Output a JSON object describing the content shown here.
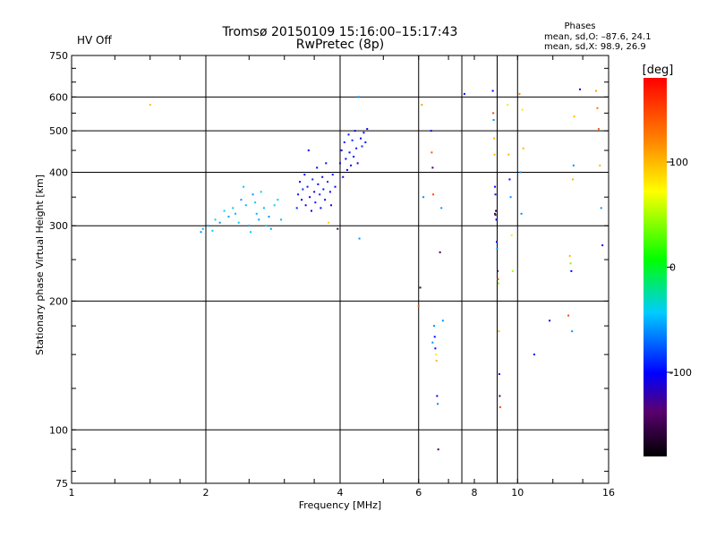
{
  "status": {
    "label": "HV Off",
    "color": "#cc0000"
  },
  "header": {
    "title_line1": "Tromsø 20150109 15:16:00–15:17:43",
    "title_line2": "RwPretec (8p)"
  },
  "phases_box": {
    "heading": "Phases",
    "line_o": "mean, sd,O: –87.6, 24.1",
    "line_x": "mean, sd,X:  98.9, 26.9"
  },
  "chart_data": {
    "type": "scatter",
    "title": "Tromsø 20150109 15:16:00–15:17:43",
    "subtitle": "RwPretec (8p)",
    "xlabel": "Frequency [MHz]",
    "ylabel": "Stationary phase Virtual Height [km]",
    "xscale": "log",
    "yscale": "log",
    "xlim": [
      1,
      16
    ],
    "ylim": [
      75,
      750
    ],
    "xticks": [
      {
        "value": 1,
        "label": "1"
      },
      {
        "value": 2,
        "label": "2"
      },
      {
        "value": 4,
        "label": "4"
      },
      {
        "value": 6,
        "label": "6"
      },
      {
        "value": 8,
        "label": "8"
      },
      {
        "value": 10,
        "label": "10"
      },
      {
        "value": 16,
        "label": "16"
      }
    ],
    "yticks": [
      {
        "value": 75,
        "label": "75"
      },
      {
        "value": 100,
        "label": "100"
      },
      {
        "value": 200,
        "label": "200"
      },
      {
        "value": 300,
        "label": "300"
      },
      {
        "value": 400,
        "label": "400"
      },
      {
        "value": 500,
        "label": "500"
      },
      {
        "value": 600,
        "label": "600"
      },
      {
        "value": 750,
        "label": "750"
      }
    ],
    "grid_x": [
      2,
      4,
      6,
      7.5,
      9,
      10
    ],
    "grid_y": [
      100,
      200,
      300,
      400,
      500,
      600
    ],
    "colorbar": {
      "label": "[deg]",
      "range": [
        -180,
        180
      ],
      "ticks": [
        {
          "value": 100,
          "label": "100"
        },
        {
          "value": 0,
          "label": "0"
        },
        {
          "value": -100,
          "label": "-100"
        }
      ]
    },
    "points": [
      {
        "x": 1.5,
        "y": 575,
        "deg": 100
      },
      {
        "x": 1.95,
        "y": 290,
        "deg": -60
      },
      {
        "x": 1.97,
        "y": 295,
        "deg": -50
      },
      {
        "x": 2.02,
        "y": 300,
        "deg": -55
      },
      {
        "x": 2.07,
        "y": 292,
        "deg": -45
      },
      {
        "x": 2.1,
        "y": 310,
        "deg": -40
      },
      {
        "x": 2.15,
        "y": 305,
        "deg": -60
      },
      {
        "x": 2.2,
        "y": 325,
        "deg": -40
      },
      {
        "x": 2.25,
        "y": 315,
        "deg": -55
      },
      {
        "x": 2.3,
        "y": 330,
        "deg": -45
      },
      {
        "x": 2.33,
        "y": 320,
        "deg": -50
      },
      {
        "x": 2.37,
        "y": 305,
        "deg": -40
      },
      {
        "x": 2.4,
        "y": 345,
        "deg": -60
      },
      {
        "x": 2.43,
        "y": 370,
        "deg": -45
      },
      {
        "x": 2.46,
        "y": 335,
        "deg": -50
      },
      {
        "x": 2.5,
        "y": 300,
        "deg": -55
      },
      {
        "x": 2.52,
        "y": 290,
        "deg": -40
      },
      {
        "x": 2.55,
        "y": 355,
        "deg": -60
      },
      {
        "x": 2.58,
        "y": 340,
        "deg": -45
      },
      {
        "x": 2.6,
        "y": 320,
        "deg": -50
      },
      {
        "x": 2.63,
        "y": 310,
        "deg": -55
      },
      {
        "x": 2.66,
        "y": 360,
        "deg": -40
      },
      {
        "x": 2.7,
        "y": 330,
        "deg": -50
      },
      {
        "x": 2.73,
        "y": 300,
        "deg": -45
      },
      {
        "x": 2.77,
        "y": 315,
        "deg": -60
      },
      {
        "x": 2.8,
        "y": 295,
        "deg": -55
      },
      {
        "x": 2.85,
        "y": 335,
        "deg": -40
      },
      {
        "x": 2.9,
        "y": 345,
        "deg": -45
      },
      {
        "x": 2.95,
        "y": 310,
        "deg": -50
      },
      {
        "x": 3.2,
        "y": 330,
        "deg": -90
      },
      {
        "x": 3.22,
        "y": 355,
        "deg": -95
      },
      {
        "x": 3.25,
        "y": 380,
        "deg": -100
      },
      {
        "x": 3.28,
        "y": 345,
        "deg": -105
      },
      {
        "x": 3.3,
        "y": 365,
        "deg": -90
      },
      {
        "x": 3.33,
        "y": 395,
        "deg": -100
      },
      {
        "x": 3.35,
        "y": 335,
        "deg": -110
      },
      {
        "x": 3.38,
        "y": 370,
        "deg": -95
      },
      {
        "x": 3.4,
        "y": 450,
        "deg": -100
      },
      {
        "x": 3.42,
        "y": 350,
        "deg": -105
      },
      {
        "x": 3.45,
        "y": 325,
        "deg": -100
      },
      {
        "x": 3.47,
        "y": 385,
        "deg": -90
      },
      {
        "x": 3.5,
        "y": 360,
        "deg": -110
      },
      {
        "x": 3.52,
        "y": 340,
        "deg": -95
      },
      {
        "x": 3.55,
        "y": 410,
        "deg": -100
      },
      {
        "x": 3.57,
        "y": 375,
        "deg": -105
      },
      {
        "x": 3.6,
        "y": 355,
        "deg": -90
      },
      {
        "x": 3.62,
        "y": 330,
        "deg": -100
      },
      {
        "x": 3.65,
        "y": 390,
        "deg": -110
      },
      {
        "x": 3.67,
        "y": 365,
        "deg": -95
      },
      {
        "x": 3.7,
        "y": 345,
        "deg": -100
      },
      {
        "x": 3.72,
        "y": 420,
        "deg": -105
      },
      {
        "x": 3.75,
        "y": 380,
        "deg": -90
      },
      {
        "x": 3.77,
        "y": 305,
        "deg": 90
      },
      {
        "x": 3.8,
        "y": 360,
        "deg": -100
      },
      {
        "x": 3.82,
        "y": 335,
        "deg": -110
      },
      {
        "x": 3.85,
        "y": 395,
        "deg": -95
      },
      {
        "x": 3.9,
        "y": 370,
        "deg": -100
      },
      {
        "x": 3.95,
        "y": 295,
        "deg": -150
      },
      {
        "x": 4.0,
        "y": 420,
        "deg": -95
      },
      {
        "x": 4.03,
        "y": 450,
        "deg": -100
      },
      {
        "x": 4.06,
        "y": 390,
        "deg": -105
      },
      {
        "x": 4.09,
        "y": 470,
        "deg": -90
      },
      {
        "x": 4.12,
        "y": 430,
        "deg": -100
      },
      {
        "x": 4.15,
        "y": 405,
        "deg": -110
      },
      {
        "x": 4.18,
        "y": 490,
        "deg": -95
      },
      {
        "x": 4.2,
        "y": 445,
        "deg": -100
      },
      {
        "x": 4.23,
        "y": 415,
        "deg": -105
      },
      {
        "x": 4.26,
        "y": 475,
        "deg": -90
      },
      {
        "x": 4.29,
        "y": 435,
        "deg": -100
      },
      {
        "x": 4.32,
        "y": 500,
        "deg": -110
      },
      {
        "x": 4.35,
        "y": 455,
        "deg": -95
      },
      {
        "x": 4.38,
        "y": 420,
        "deg": -100
      },
      {
        "x": 4.4,
        "y": 600,
        "deg": -60
      },
      {
        "x": 4.42,
        "y": 280,
        "deg": -60
      },
      {
        "x": 4.45,
        "y": 480,
        "deg": -105
      },
      {
        "x": 4.48,
        "y": 460,
        "deg": -90
      },
      {
        "x": 4.52,
        "y": 495,
        "deg": -100
      },
      {
        "x": 4.56,
        "y": 470,
        "deg": -95
      },
      {
        "x": 4.6,
        "y": 505,
        "deg": -110
      },
      {
        "x": 6.05,
        "y": 215,
        "deg": -150
      },
      {
        "x": 6.1,
        "y": 575,
        "deg": 110
      },
      {
        "x": 6.15,
        "y": 350,
        "deg": -60
      },
      {
        "x": 6.0,
        "y": 195,
        "deg": 140
      },
      {
        "x": 6.4,
        "y": 500,
        "deg": -100
      },
      {
        "x": 6.42,
        "y": 445,
        "deg": 140
      },
      {
        "x": 6.45,
        "y": 410,
        "deg": -150
      },
      {
        "x": 6.47,
        "y": 355,
        "deg": 150
      },
      {
        "x": 6.5,
        "y": 175,
        "deg": -60
      },
      {
        "x": 6.52,
        "y": 165,
        "deg": -100
      },
      {
        "x": 6.54,
        "y": 155,
        "deg": -110
      },
      {
        "x": 6.56,
        "y": 150,
        "deg": 80
      },
      {
        "x": 6.58,
        "y": 145,
        "deg": 100
      },
      {
        "x": 6.6,
        "y": 120,
        "deg": -100
      },
      {
        "x": 6.62,
        "y": 115,
        "deg": -60
      },
      {
        "x": 6.64,
        "y": 90,
        "deg": -150
      },
      {
        "x": 6.7,
        "y": 260,
        "deg": -150
      },
      {
        "x": 6.75,
        "y": 330,
        "deg": -60
      },
      {
        "x": 6.8,
        "y": 180,
        "deg": -60
      },
      {
        "x": 6.45,
        "y": 160,
        "deg": -60
      },
      {
        "x": 7.6,
        "y": 610,
        "deg": -100
      },
      {
        "x": 8.8,
        "y": 620,
        "deg": -100
      },
      {
        "x": 8.82,
        "y": 550,
        "deg": 150
      },
      {
        "x": 8.84,
        "y": 530,
        "deg": -60
      },
      {
        "x": 8.86,
        "y": 480,
        "deg": 100
      },
      {
        "x": 8.88,
        "y": 440,
        "deg": 100
      },
      {
        "x": 8.9,
        "y": 370,
        "deg": -100
      },
      {
        "x": 8.92,
        "y": 355,
        "deg": -110
      },
      {
        "x": 8.94,
        "y": 325,
        "deg": -150
      },
      {
        "x": 8.96,
        "y": 310,
        "deg": -100
      },
      {
        "x": 8.98,
        "y": 275,
        "deg": -100
      },
      {
        "x": 9.0,
        "y": 265,
        "deg": -60
      },
      {
        "x": 9.02,
        "y": 235,
        "deg": -150
      },
      {
        "x": 9.04,
        "y": 225,
        "deg": 150
      },
      {
        "x": 9.06,
        "y": 220,
        "deg": 40
      },
      {
        "x": 9.08,
        "y": 170,
        "deg": 100
      },
      {
        "x": 9.1,
        "y": 135,
        "deg": -100
      },
      {
        "x": 9.12,
        "y": 120,
        "deg": -150
      },
      {
        "x": 9.14,
        "y": 113,
        "deg": 150
      },
      {
        "x": 8.9,
        "y": 320,
        "deg": -150
      },
      {
        "x": 8.92,
        "y": 318,
        "deg": -150
      },
      {
        "x": 9.5,
        "y": 575,
        "deg": 60
      },
      {
        "x": 9.55,
        "y": 440,
        "deg": 100
      },
      {
        "x": 9.6,
        "y": 385,
        "deg": -100
      },
      {
        "x": 9.65,
        "y": 350,
        "deg": -60
      },
      {
        "x": 9.7,
        "y": 285,
        "deg": 80
      },
      {
        "x": 9.75,
        "y": 235,
        "deg": 50
      },
      {
        "x": 10.1,
        "y": 610,
        "deg": 120
      },
      {
        "x": 10.15,
        "y": 400,
        "deg": -60
      },
      {
        "x": 10.2,
        "y": 320,
        "deg": -60
      },
      {
        "x": 10.25,
        "y": 560,
        "deg": 80
      },
      {
        "x": 10.3,
        "y": 455,
        "deg": 100
      },
      {
        "x": 10.9,
        "y": 150,
        "deg": -100
      },
      {
        "x": 11.8,
        "y": 180,
        "deg": -100
      },
      {
        "x": 13.0,
        "y": 185,
        "deg": 150
      },
      {
        "x": 13.1,
        "y": 255,
        "deg": 100
      },
      {
        "x": 13.15,
        "y": 245,
        "deg": 40
      },
      {
        "x": 13.2,
        "y": 235,
        "deg": -100
      },
      {
        "x": 13.25,
        "y": 170,
        "deg": -60
      },
      {
        "x": 13.3,
        "y": 385,
        "deg": 100
      },
      {
        "x": 13.35,
        "y": 415,
        "deg": -60
      },
      {
        "x": 13.4,
        "y": 540,
        "deg": 100
      },
      {
        "x": 13.8,
        "y": 625,
        "deg": -100
      },
      {
        "x": 15.0,
        "y": 620,
        "deg": 110
      },
      {
        "x": 15.1,
        "y": 565,
        "deg": 130
      },
      {
        "x": 15.2,
        "y": 505,
        "deg": 140
      },
      {
        "x": 15.3,
        "y": 415,
        "deg": 100
      },
      {
        "x": 15.4,
        "y": 330,
        "deg": -60
      },
      {
        "x": 15.5,
        "y": 270,
        "deg": -100
      }
    ]
  }
}
